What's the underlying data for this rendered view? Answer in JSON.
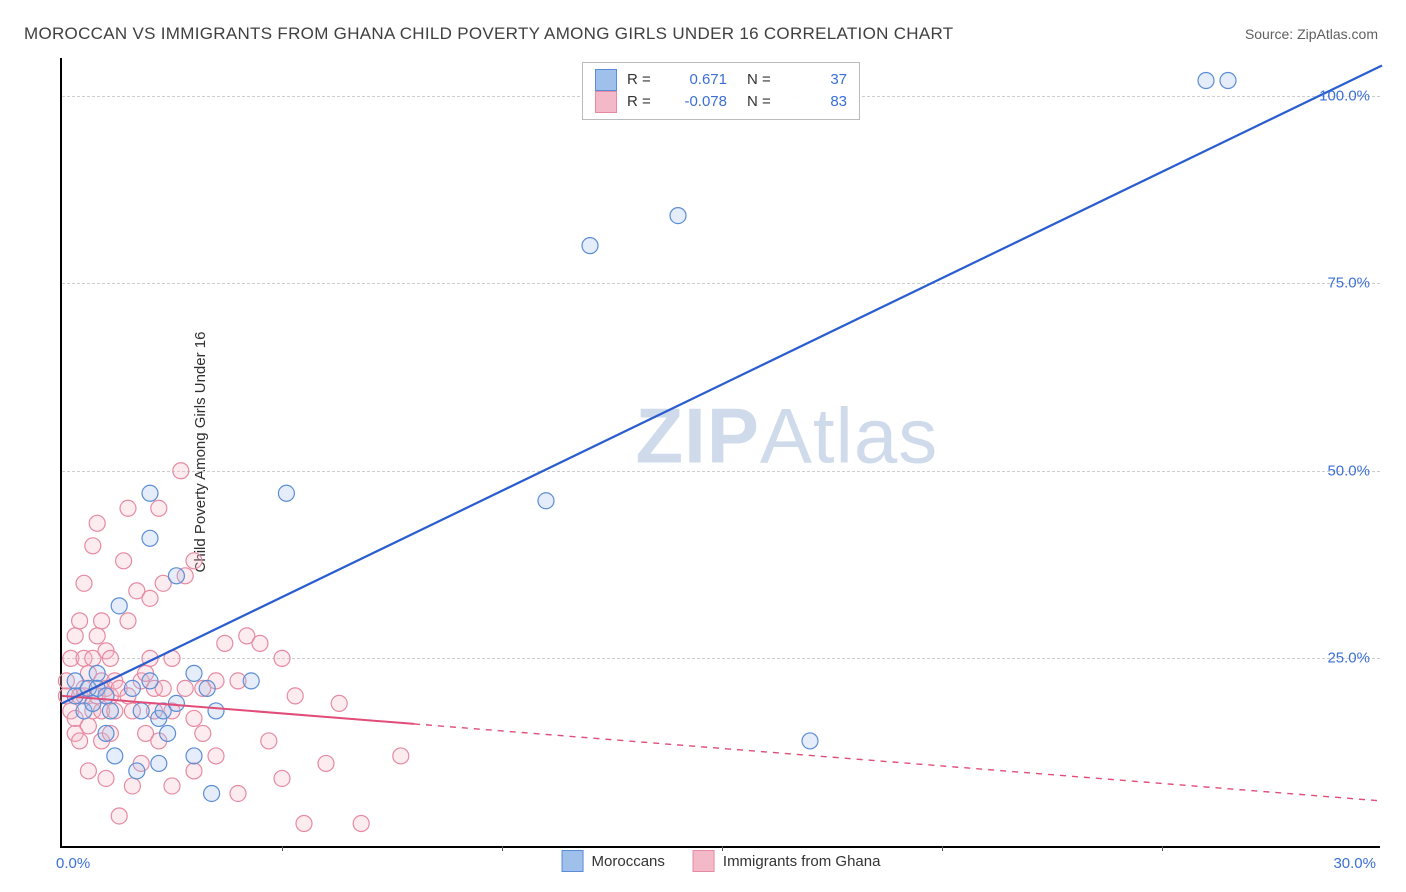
{
  "title": "MOROCCAN VS IMMIGRANTS FROM GHANA CHILD POVERTY AMONG GIRLS UNDER 16 CORRELATION CHART",
  "source": "Source: ZipAtlas.com",
  "ylabel": "Child Poverty Among Girls Under 16",
  "watermark_bold": "ZIP",
  "watermark_rest": "Atlas",
  "chart": {
    "type": "scatter",
    "background_color": "#ffffff",
    "grid_color": "#cccccc",
    "axis_color": "#000000",
    "xlim": [
      0,
      30
    ],
    "ylim": [
      0,
      105
    ],
    "yticks": [
      25,
      50,
      75,
      100
    ],
    "ytick_labels": [
      "25.0%",
      "50.0%",
      "75.0%",
      "100.0%"
    ],
    "x_zero_label": "0.0%",
    "x_max_label": "30.0%",
    "x_minor_ticks": [
      5,
      10,
      15,
      20,
      25
    ],
    "label_color": "#3b6fd6",
    "marker_radius": 8,
    "marker_stroke_width": 1.2,
    "marker_fill_opacity": 0.28,
    "series": [
      {
        "name": "Moroccans",
        "color_stroke": "#5b8dd6",
        "color_fill": "#9fc0ea",
        "line_color": "#2a5ed0",
        "line_width": 2.2,
        "R": "0.671",
        "N": "37",
        "trend": {
          "x1": 0,
          "y1": 19,
          "x2": 30,
          "y2": 104,
          "solid_until": 30
        },
        "points": [
          [
            0.3,
            20
          ],
          [
            0.3,
            22
          ],
          [
            0.5,
            18
          ],
          [
            0.6,
            21
          ],
          [
            0.7,
            19
          ],
          [
            0.8,
            23
          ],
          [
            0.8,
            21
          ],
          [
            1.0,
            20
          ],
          [
            1.0,
            15
          ],
          [
            1.1,
            18
          ],
          [
            1.2,
            12
          ],
          [
            1.3,
            32
          ],
          [
            1.6,
            21
          ],
          [
            1.7,
            10
          ],
          [
            1.8,
            18
          ],
          [
            2.0,
            47
          ],
          [
            2.0,
            41
          ],
          [
            2.0,
            22
          ],
          [
            2.2,
            11
          ],
          [
            2.2,
            17
          ],
          [
            2.3,
            18
          ],
          [
            2.4,
            15
          ],
          [
            2.6,
            36
          ],
          [
            2.6,
            19
          ],
          [
            3.0,
            12
          ],
          [
            3.0,
            23
          ],
          [
            3.3,
            21
          ],
          [
            3.4,
            7
          ],
          [
            3.5,
            18
          ],
          [
            4.3,
            22
          ],
          [
            5.1,
            47
          ],
          [
            11.0,
            46
          ],
          [
            12.0,
            80
          ],
          [
            14.0,
            84
          ],
          [
            17.0,
            14
          ],
          [
            26.0,
            102
          ],
          [
            26.5,
            102
          ]
        ]
      },
      {
        "name": "Immigrants from Ghana",
        "color_stroke": "#e68aa2",
        "color_fill": "#f4b9c8",
        "line_color": "#e14d78",
        "line_width": 2.0,
        "R": "-0.078",
        "N": "83",
        "trend": {
          "x1": 0,
          "y1": 20,
          "x2": 30,
          "y2": 6,
          "solid_until": 8
        },
        "points": [
          [
            0.1,
            20
          ],
          [
            0.1,
            22
          ],
          [
            0.2,
            18
          ],
          [
            0.2,
            25
          ],
          [
            0.3,
            15
          ],
          [
            0.3,
            28
          ],
          [
            0.3,
            17
          ],
          [
            0.4,
            20
          ],
          [
            0.4,
            30
          ],
          [
            0.4,
            14
          ],
          [
            0.5,
            25
          ],
          [
            0.5,
            20
          ],
          [
            0.5,
            21
          ],
          [
            0.5,
            35
          ],
          [
            0.6,
            23
          ],
          [
            0.6,
            16
          ],
          [
            0.6,
            10
          ],
          [
            0.7,
            40
          ],
          [
            0.7,
            25
          ],
          [
            0.7,
            18
          ],
          [
            0.8,
            28
          ],
          [
            0.8,
            20
          ],
          [
            0.8,
            43
          ],
          [
            0.9,
            22
          ],
          [
            0.9,
            18
          ],
          [
            0.9,
            30
          ],
          [
            0.9,
            14
          ],
          [
            1.0,
            26
          ],
          [
            1.0,
            21
          ],
          [
            1.0,
            9
          ],
          [
            1.1,
            20
          ],
          [
            1.1,
            25
          ],
          [
            1.1,
            15
          ],
          [
            1.2,
            22
          ],
          [
            1.2,
            18
          ],
          [
            1.3,
            21
          ],
          [
            1.3,
            4
          ],
          [
            1.4,
            38
          ],
          [
            1.5,
            45
          ],
          [
            1.5,
            20
          ],
          [
            1.5,
            30
          ],
          [
            1.6,
            18
          ],
          [
            1.6,
            8
          ],
          [
            1.7,
            34
          ],
          [
            1.8,
            22
          ],
          [
            1.8,
            11
          ],
          [
            1.9,
            23
          ],
          [
            1.9,
            15
          ],
          [
            2.0,
            33
          ],
          [
            2.0,
            25
          ],
          [
            2.1,
            18
          ],
          [
            2.1,
            21
          ],
          [
            2.2,
            45
          ],
          [
            2.2,
            14
          ],
          [
            2.3,
            35
          ],
          [
            2.3,
            21
          ],
          [
            2.5,
            25
          ],
          [
            2.5,
            18
          ],
          [
            2.5,
            8
          ],
          [
            2.7,
            50
          ],
          [
            2.8,
            36
          ],
          [
            2.8,
            21
          ],
          [
            3.0,
            38
          ],
          [
            3.0,
            17
          ],
          [
            3.0,
            10
          ],
          [
            3.2,
            15
          ],
          [
            3.2,
            21
          ],
          [
            3.5,
            22
          ],
          [
            3.5,
            12
          ],
          [
            3.7,
            27
          ],
          [
            4.0,
            22
          ],
          [
            4.0,
            7
          ],
          [
            4.2,
            28
          ],
          [
            4.5,
            27
          ],
          [
            4.7,
            14
          ],
          [
            5.0,
            25
          ],
          [
            5.0,
            9
          ],
          [
            5.3,
            20
          ],
          [
            5.5,
            3
          ],
          [
            6.0,
            11
          ],
          [
            6.3,
            19
          ],
          [
            6.8,
            3
          ],
          [
            7.7,
            12
          ]
        ]
      }
    ],
    "legend_top": {
      "r_label": "R =",
      "n_label": "N ="
    },
    "legend_bottom": {
      "series1": "Moroccans",
      "series2": "Immigrants from Ghana"
    }
  }
}
